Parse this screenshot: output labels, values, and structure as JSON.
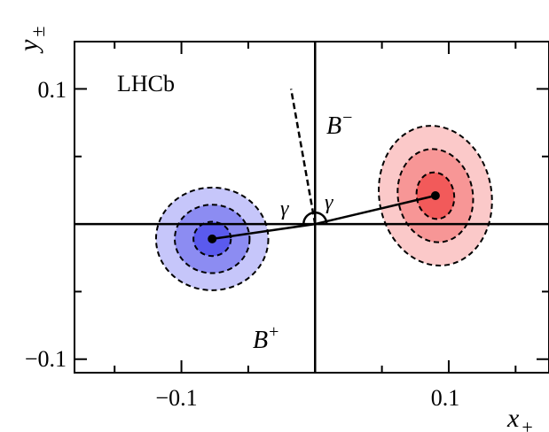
{
  "chart_data": {
    "type": "scatter",
    "title": "",
    "xlabel": "x",
    "xlabel_sub": "+",
    "ylabel": "y",
    "ylabel_sub": "±",
    "xlim": [
      -0.18,
      0.175
    ],
    "ylim": [
      -0.11,
      0.135
    ],
    "x_ticks": [
      {
        "value": -0.1,
        "label": "−0.1"
      },
      {
        "value": 0.1,
        "label": "0.1"
      }
    ],
    "y_ticks": [
      {
        "value": 0.1,
        "label": "0.1"
      },
      {
        "value": -0.1,
        "label": "−0.1"
      }
    ],
    "x_minor_ticks": [
      -0.15,
      -0.05,
      0.05,
      0.15
    ],
    "y_minor_ticks": [
      -0.05,
      0.05
    ],
    "grid": false,
    "annotations": {
      "experiment": "LHCb",
      "gamma_left": "γ",
      "gamma_right": "γ",
      "b_minus_base": "B",
      "b_minus_sup": "−",
      "b_plus_base": "B",
      "b_plus_sup": "+"
    },
    "series": [
      {
        "name": "B+",
        "center": [
          -0.077,
          -0.011
        ],
        "spread": [
          0.042,
          0.038
        ],
        "contour_levels": [
          1,
          2,
          3
        ],
        "color_core": "#5a5aee",
        "color_mid": "#8c8cf2",
        "color_outer": "#c6c6fa"
      },
      {
        "name": "B−",
        "center": [
          0.09,
          0.021
        ],
        "spread": [
          0.042,
          0.052
        ],
        "tilt_deg": -10,
        "contour_levels": [
          1,
          2,
          3
        ],
        "color_core": "#f25a5a",
        "color_mid": "#f79696",
        "color_outer": "#fbc9c9"
      }
    ],
    "lines": {
      "ray_color": "#000000",
      "dashed_direction_end": [
        -0.018,
        0.1
      ]
    }
  }
}
